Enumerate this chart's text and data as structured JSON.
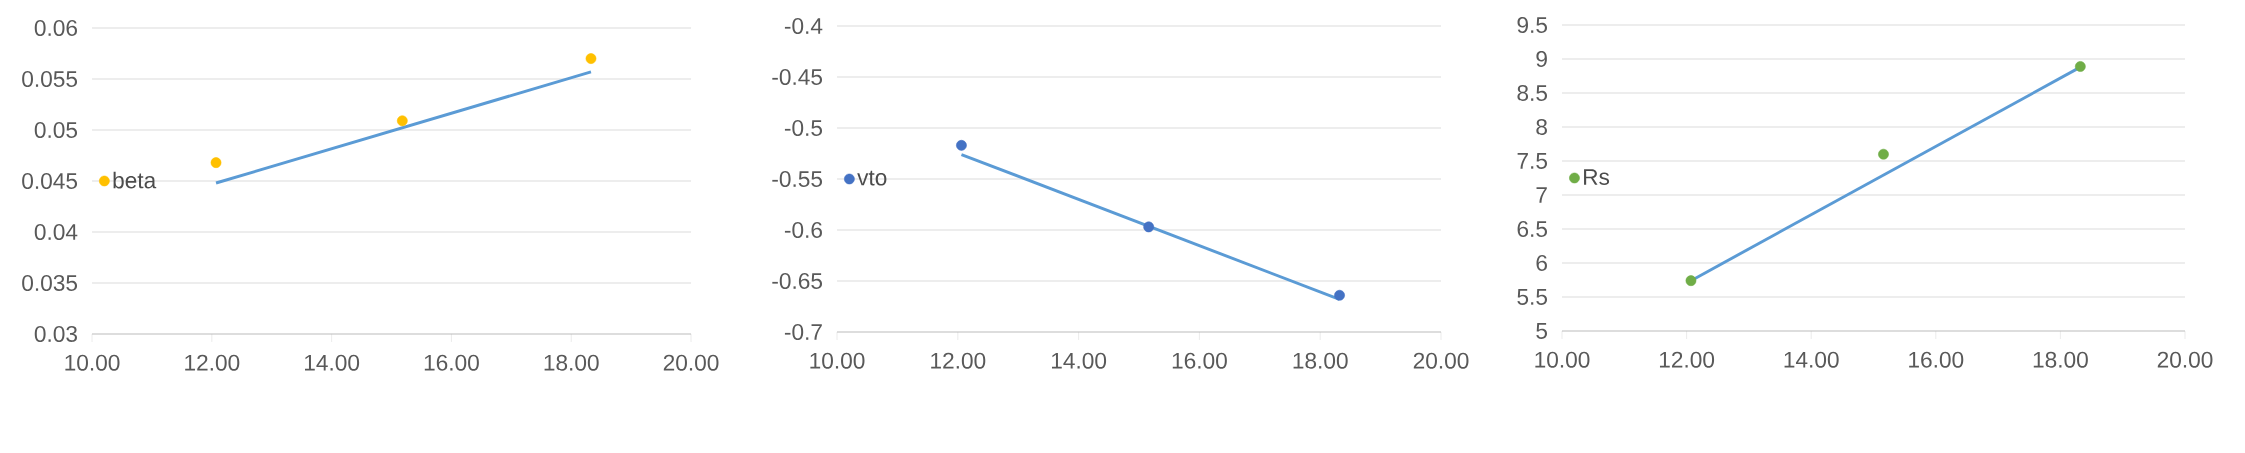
{
  "chart_data": [
    {
      "type": "scatter",
      "legend": "left",
      "grid": "y",
      "xlim": [
        10,
        20
      ],
      "ylim": [
        0.03,
        0.06
      ],
      "xticks": [
        {
          "value": 10,
          "label": "10.00"
        },
        {
          "value": 12,
          "label": "12.00"
        },
        {
          "value": 14,
          "label": "14.00"
        },
        {
          "value": 16,
          "label": "16.00"
        },
        {
          "value": 18,
          "label": "18.00"
        },
        {
          "value": 20,
          "label": "20.00"
        }
      ],
      "yticks": [
        0.03,
        0.035,
        0.04,
        0.045,
        0.05,
        0.055,
        0.06
      ],
      "series": [
        {
          "name": "beta",
          "type": "scatter",
          "marker": "circle",
          "color": "#ffc000",
          "x": [
            12.07,
            15.18,
            18.33
          ],
          "values": [
            0.0468,
            0.0509,
            0.057
          ]
        },
        {
          "type": "line",
          "marker": "none",
          "color": "#5b9bd5",
          "x": [
            12.07,
            18.33
          ],
          "values": [
            0.0448,
            0.0557
          ]
        }
      ]
    },
    {
      "type": "scatter",
      "legend": "left",
      "grid": "y",
      "xlim": [
        10,
        20
      ],
      "ylim": [
        -0.7,
        -0.4
      ],
      "xticks": [
        {
          "value": 10,
          "label": "10.00"
        },
        {
          "value": 12,
          "label": "12.00"
        },
        {
          "value": 14,
          "label": "14.00"
        },
        {
          "value": 16,
          "label": "16.00"
        },
        {
          "value": 18,
          "label": "18.00"
        },
        {
          "value": 20,
          "label": "20.00"
        }
      ],
      "yticks": [
        -0.7,
        -0.65,
        -0.6,
        -0.55,
        -0.5,
        -0.45,
        -0.4
      ],
      "series": [
        {
          "name": "vto",
          "type": "scatter",
          "marker": "circle",
          "color": "#4472c4",
          "x": [
            12.06,
            15.16,
            18.32
          ],
          "values": [
            -0.517,
            -0.597,
            -0.664
          ]
        },
        {
          "type": "line",
          "marker": "none",
          "color": "#5b9bd5",
          "x": [
            12.06,
            18.32
          ],
          "values": [
            -0.526,
            -0.668
          ]
        }
      ]
    },
    {
      "type": "scatter",
      "legend": "left",
      "grid": "y",
      "xlim": [
        10,
        20
      ],
      "ylim": [
        5,
        9.5
      ],
      "xticks": [
        {
          "value": 10,
          "label": "10.00"
        },
        {
          "value": 12,
          "label": "12.00"
        },
        {
          "value": 14,
          "label": "14.00"
        },
        {
          "value": 16,
          "label": "16.00"
        },
        {
          "value": 18,
          "label": "18.00"
        },
        {
          "value": 20,
          "label": "20.00"
        }
      ],
      "yticks": [
        5,
        5.5,
        6,
        6.5,
        7,
        7.5,
        8,
        8.5,
        9,
        9.5
      ],
      "series": [
        {
          "name": "Rs",
          "type": "scatter",
          "marker": "circle",
          "color": "#70ad47",
          "x": [
            12.07,
            15.16,
            18.32
          ],
          "values": [
            5.74,
            7.6,
            8.89
          ]
        },
        {
          "type": "line",
          "marker": "none",
          "color": "#5b9bd5",
          "x": [
            12.07,
            18.32
          ],
          "values": [
            5.74,
            8.88
          ]
        }
      ]
    }
  ]
}
